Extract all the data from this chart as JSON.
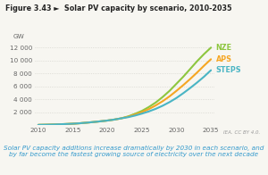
{
  "title": "Figure 3.43 ►  Solar PV capacity by scenario, 2010-2035",
  "ylabel": "GW",
  "caption": "Solar PV capacity additions increase dramatically by 2030 in each scenario, and\nby far become the fastest growing source of electricity over the next decade",
  "iea_credit": "IEA. CC BY 4.0.",
  "scenarios": [
    "NZE",
    "APS",
    "STEPS"
  ],
  "colors": [
    "#8dc63f",
    "#f5a623",
    "#4ab5c4"
  ],
  "years": [
    2010,
    2011,
    2012,
    2013,
    2014,
    2015,
    2016,
    2017,
    2018,
    2019,
    2020,
    2021,
    2022,
    2023,
    2024,
    2025,
    2026,
    2027,
    2028,
    2029,
    2030,
    2031,
    2032,
    2033,
    2034,
    2035
  ],
  "NZE": [
    40,
    60,
    90,
    130,
    170,
    220,
    290,
    380,
    480,
    590,
    710,
    860,
    1050,
    1350,
    1750,
    2200,
    2800,
    3500,
    4350,
    5300,
    6400,
    7500,
    8700,
    9900,
    11000,
    12000
  ],
  "APS": [
    40,
    60,
    90,
    130,
    170,
    220,
    290,
    380,
    480,
    590,
    710,
    860,
    1050,
    1300,
    1620,
    2000,
    2480,
    3050,
    3700,
    4450,
    5300,
    6200,
    7150,
    8150,
    9200,
    10200
  ],
  "STEPS": [
    40,
    60,
    90,
    130,
    170,
    220,
    290,
    380,
    480,
    590,
    710,
    860,
    1050,
    1230,
    1480,
    1780,
    2120,
    2520,
    3000,
    3560,
    4200,
    4950,
    5750,
    6600,
    7500,
    8500
  ],
  "ylim": [
    0,
    13000
  ],
  "yticks": [
    0,
    2000,
    4000,
    6000,
    8000,
    10000,
    12000
  ],
  "ytick_labels": [
    "",
    "2 000",
    "4 000",
    "6 000",
    "8 000",
    "10 000",
    "12 000"
  ],
  "xlim": [
    2009.5,
    2035.5
  ],
  "xticks": [
    2010,
    2015,
    2020,
    2025,
    2030,
    2035
  ],
  "bg_color": "#f7f6f1",
  "plot_bg": "#f7f6f1",
  "grid_color": "#c8c8c0",
  "title_color": "#222222",
  "caption_color": "#3399cc",
  "credit_color": "#999999",
  "line_width": 1.5,
  "label_fontsize": 5.2,
  "title_fontsize": 5.8,
  "caption_fontsize": 5.2,
  "scenario_fontsize": 5.8
}
